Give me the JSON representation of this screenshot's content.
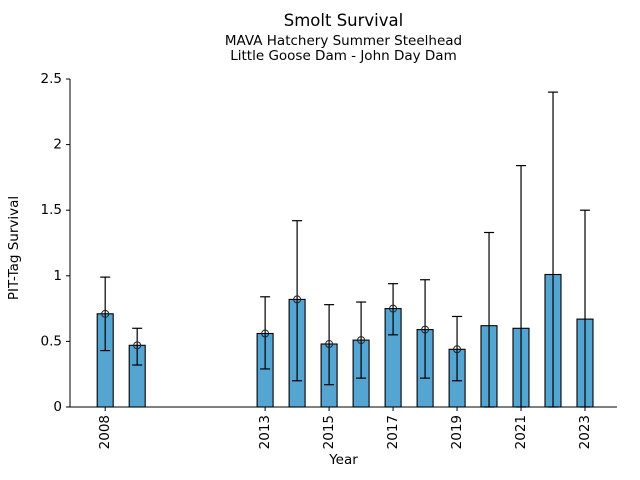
{
  "page": {
    "background_color": "#ffffff",
    "text_color": "#000000"
  },
  "chart_data": {
    "type": "bar",
    "title": "Smolt Survival",
    "subtitle1": "MAVA Hatchery Summer Steelhead",
    "subtitle2": "Little Goose Dam - John Day Dam",
    "xlabel": "Year",
    "ylabel": "PIT-Tag Survival",
    "x": [
      2008,
      2009,
      2013,
      2014,
      2015,
      2016,
      2017,
      2018,
      2019,
      2020,
      2021,
      2022,
      2023
    ],
    "values": [
      0.71,
      0.47,
      0.56,
      0.82,
      0.48,
      0.51,
      0.75,
      0.59,
      0.44,
      0.62,
      0.6,
      1.01,
      0.67
    ],
    "err_lo": [
      0.43,
      0.32,
      0.29,
      0.2,
      0.17,
      0.22,
      0.55,
      0.22,
      0.2,
      0.0,
      0.0,
      0.0,
      0.0
    ],
    "err_hi": [
      0.99,
      0.6,
      0.84,
      1.42,
      0.78,
      0.8,
      0.94,
      0.97,
      0.69,
      1.33,
      1.84,
      2.4,
      1.5
    ],
    "marker": [
      true,
      true,
      true,
      true,
      true,
      true,
      true,
      true,
      true,
      false,
      false,
      false,
      false
    ],
    "marker_style": "open-circle",
    "xticks": [
      2008,
      2013,
      2015,
      2017,
      2019,
      2021,
      2023
    ],
    "xtick_labels": [
      "2008",
      "2013",
      "2015",
      "2017",
      "2019",
      "2021",
      "2023"
    ],
    "yticks": [
      0,
      0.5,
      1,
      1.5,
      2,
      2.5
    ],
    "ytick_labels": [
      "0",
      "0.5",
      "1",
      "1.5",
      "2",
      "2.5"
    ],
    "xlim": [
      2006.9,
      2024.0
    ],
    "ylim": [
      0,
      2.5
    ],
    "grid": false,
    "legend": null,
    "bar_width_years": 0.5,
    "bar_color": "#55A5D2",
    "bar_edge_color": "#000000",
    "errorbar_color": "#000000",
    "marker_edge_color": "#222222",
    "axis_color": "#000000"
  }
}
